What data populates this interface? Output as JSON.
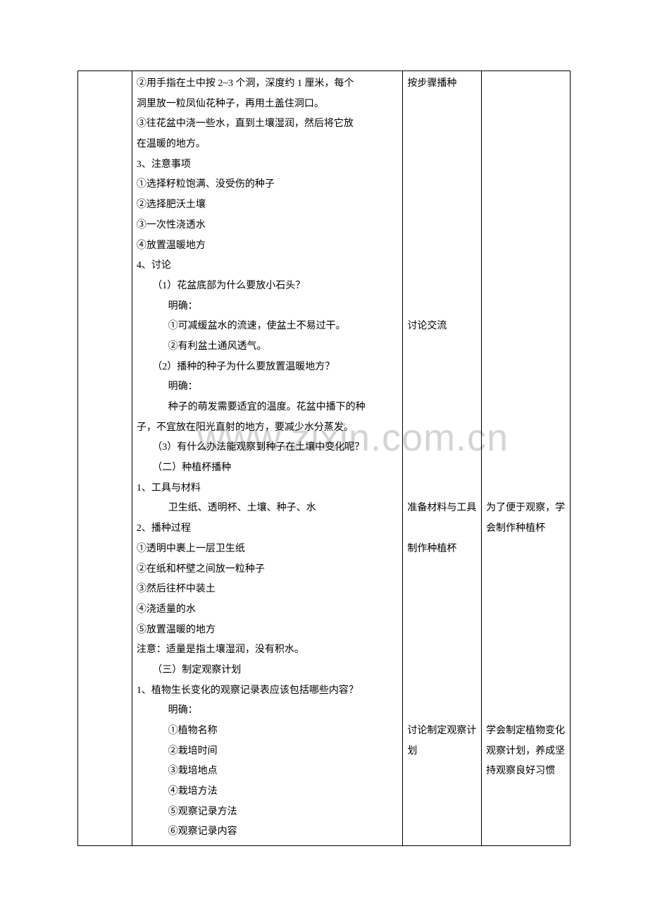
{
  "watermark": "www.zixin.com.cn",
  "col2_lines": [
    {
      "t": "②用手指在土中按 2~3 个洞，深度约 1 厘米，每个",
      "cls": ""
    },
    {
      "t": "洞里放一粒凤仙花种子，再用土盖住洞口。",
      "cls": ""
    },
    {
      "t": "③往花盆中浇一些水，直到土壤湿润，然后将它放",
      "cls": ""
    },
    {
      "t": "在温暖的地方。",
      "cls": ""
    },
    {
      "t": "3、注意事项",
      "cls": ""
    },
    {
      "t": "①选择籽粒饱满、没受伤的种子",
      "cls": ""
    },
    {
      "t": "②选择肥沃土壤",
      "cls": ""
    },
    {
      "t": "③一次性浇透水",
      "cls": ""
    },
    {
      "t": "④放置温暖地方",
      "cls": ""
    },
    {
      "t": "4、讨论",
      "cls": ""
    },
    {
      "t": "（1）花盆底部为什么要放小石头？",
      "cls": "ind1"
    },
    {
      "t": "明确：",
      "cls": "ind2"
    },
    {
      "t": "①可减缓盆水的流速，使盆土不易过干。",
      "cls": "ind2"
    },
    {
      "t": "②有利盆土通风透气。",
      "cls": "ind2"
    },
    {
      "t": "（2）播种的种子为什么要放置温暖地方？",
      "cls": "ind1"
    },
    {
      "t": "明确：",
      "cls": "ind2"
    },
    {
      "t": "种子的萌发需要适宜的温度。花盆中播下的种",
      "cls": "ind2"
    },
    {
      "t": "子，不宜放在阳光直射的地方，要减少水分蒸发。",
      "cls": ""
    },
    {
      "t": "（3）有什么办法能观察到种子在土壤中变化呢？",
      "cls": "ind1"
    },
    {
      "t": "（二）种植杯播种",
      "cls": "ind1"
    },
    {
      "t": "1、工具与材料",
      "cls": ""
    },
    {
      "t": "卫生纸、透明杯、土壤、种子、水",
      "cls": "ind2"
    },
    {
      "t": "2、播种过程",
      "cls": ""
    },
    {
      "t": "①透明中裹上一层卫生纸",
      "cls": ""
    },
    {
      "t": "②在纸和杯壁之间放一粒种子",
      "cls": ""
    },
    {
      "t": "③然后往杯中装土",
      "cls": ""
    },
    {
      "t": "④浇适量的水",
      "cls": ""
    },
    {
      "t": "⑤放置温暖的地方",
      "cls": ""
    },
    {
      "t": "注意：适量是指土壤湿润，没有积水。",
      "cls": ""
    },
    {
      "t": "（三）制定观察计划",
      "cls": "ind1"
    },
    {
      "t": "1、植物生长变化的观察记录表应该包括哪些内容？",
      "cls": ""
    },
    {
      "t": "明确：",
      "cls": "ind2"
    },
    {
      "t": "①植物名称",
      "cls": "ind2"
    },
    {
      "t": "②栽培时间",
      "cls": "ind2"
    },
    {
      "t": "③栽培地点",
      "cls": "ind2"
    },
    {
      "t": "④栽培方法",
      "cls": "ind2"
    },
    {
      "t": "⑤观察记录方法",
      "cls": "ind2"
    },
    {
      "t": "⑥观察记录内容",
      "cls": "ind2"
    }
  ],
  "col3_blocks": [
    {
      "t": "按步骤播种",
      "before": 0,
      "after": 11
    },
    {
      "t": "讨论交流",
      "before": 0,
      "after": 8
    },
    {
      "t": "准备材料与工具",
      "before": 0,
      "after": 1
    },
    {
      "t": "制作种植杯",
      "before": 0,
      "after": 8
    },
    {
      "t": "讨论制定观察计划",
      "before": 0,
      "after": 3
    }
  ],
  "col4_blocks": [
    {
      "t": "",
      "before": 0,
      "after": 21
    },
    {
      "t": "为了便于观察，学会制作种植杯",
      "before": 0,
      "after": 9
    },
    {
      "t": "学会制定植物变化观察计划，养成坚持观察良好习惯",
      "before": 0,
      "after": 1
    }
  ]
}
